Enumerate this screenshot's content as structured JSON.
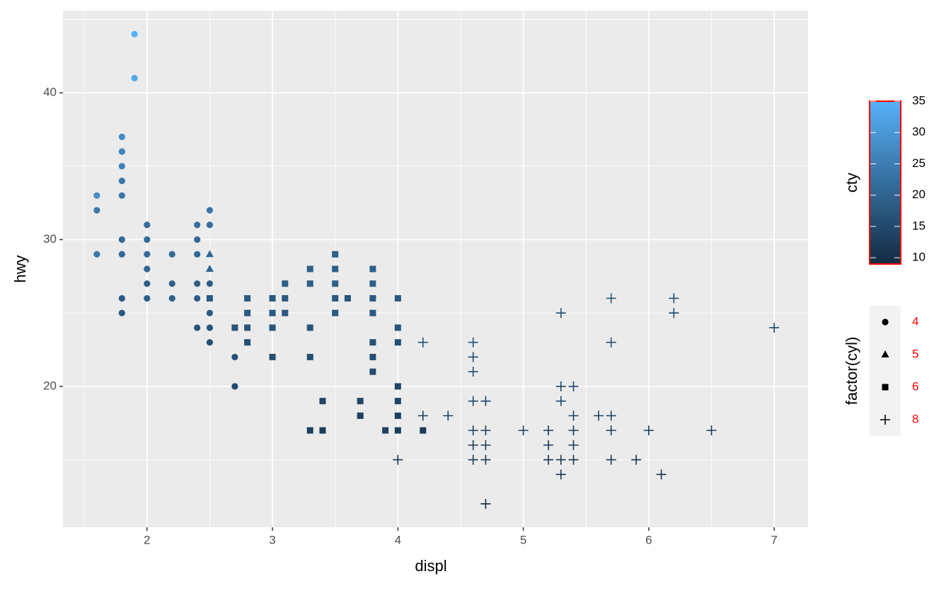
{
  "chart_data": {
    "type": "scatter",
    "x_label": "displ",
    "y_label": "hwy",
    "xlim": [
      1.33,
      7.27
    ],
    "ylim": [
      10.4,
      45.6
    ],
    "xticks": [
      2,
      3,
      4,
      5,
      6,
      7
    ],
    "yticks": [
      20,
      30,
      40
    ],
    "xminor": [
      1.5,
      2.5,
      3.5,
      4.5,
      5.5,
      6.5
    ],
    "yminor": [
      15,
      25,
      35,
      45
    ],
    "grid": true,
    "colorbar": {
      "title": "cty",
      "low": "#132B43",
      "high": "#56B1F7",
      "lim": [
        9,
        35
      ],
      "ticks": [
        10,
        15,
        20,
        25,
        30,
        35
      ],
      "border": "#ff0000"
    },
    "shape_legend": {
      "title": "factor(cyl)",
      "label_color": "#ff0000"
    },
    "series": [
      {
        "name": "4",
        "shape": "circle",
        "x": [
          1.6,
          1.6,
          1.6,
          1.8,
          1.8,
          1.8,
          1.8,
          1.8,
          1.8,
          1.8,
          1.8,
          1.8,
          1.9,
          1.9,
          2,
          2,
          2,
          2,
          2,
          2,
          2.2,
          2.2,
          2.2,
          2.4,
          2.4,
          2.4,
          2.4,
          2.4,
          2.4,
          2.5,
          2.5,
          2.5,
          2.5,
          2.5,
          2.5,
          2.7,
          2.7
        ],
        "values": [
          33,
          32,
          29,
          29,
          26,
          25,
          30,
          33,
          34,
          35,
          36,
          37,
          44,
          41,
          31,
          30,
          29,
          28,
          27,
          26,
          29,
          27,
          26,
          31,
          30,
          29,
          27,
          26,
          24,
          32,
          31,
          27,
          25,
          24,
          23,
          22,
          20
        ],
        "cty": [
          28,
          24,
          24,
          21,
          18,
          18,
          21,
          24,
          24,
          26,
          26,
          28,
          35,
          33,
          22,
          21,
          21,
          20,
          19,
          19,
          21,
          19,
          19,
          22,
          21,
          21,
          19,
          19,
          17,
          23,
          22,
          19,
          18,
          17,
          16,
          16,
          15
        ]
      },
      {
        "name": "5",
        "shape": "triangle",
        "x": [
          2.5,
          2.5
        ],
        "values": [
          29,
          28
        ],
        "cty": [
          21,
          20
        ]
      },
      {
        "name": "6",
        "shape": "square",
        "x": [
          2.5,
          2.7,
          2.8,
          2.8,
          2.8,
          2.8,
          3,
          3,
          3,
          3,
          3.1,
          3.1,
          3.1,
          3.3,
          3.3,
          3.3,
          3.3,
          3.3,
          3.4,
          3.4,
          3.5,
          3.5,
          3.5,
          3.5,
          3.5,
          3.6,
          3.7,
          3.7,
          3.8,
          3.8,
          3.8,
          3.8,
          3.8,
          3.8,
          3.8,
          3.9,
          4,
          4,
          4,
          4,
          4,
          4,
          4,
          4.2
        ],
        "values": [
          26,
          24,
          26,
          25,
          24,
          23,
          26,
          25,
          24,
          22,
          27,
          26,
          25,
          28,
          27,
          24,
          22,
          17,
          19,
          17,
          29,
          28,
          27,
          26,
          25,
          26,
          19,
          18,
          28,
          27,
          26,
          25,
          23,
          22,
          21,
          17,
          26,
          24,
          23,
          20,
          19,
          18,
          17,
          17
        ],
        "cty": [
          18,
          17,
          18,
          18,
          17,
          16,
          18,
          18,
          17,
          16,
          19,
          18,
          18,
          19,
          19,
          17,
          16,
          13,
          14,
          12,
          19,
          19,
          19,
          18,
          18,
          17,
          14,
          13,
          19,
          19,
          18,
          18,
          16,
          16,
          15,
          13,
          18,
          17,
          16,
          14,
          14,
          13,
          13,
          12
        ]
      },
      {
        "name": "8",
        "shape": "plus",
        "x": [
          4,
          4.2,
          4.2,
          4.4,
          4.6,
          4.6,
          4.6,
          4.6,
          4.6,
          4.6,
          4.6,
          4.7,
          4.7,
          4.7,
          4.7,
          4.7,
          5,
          5.2,
          5.2,
          5.2,
          5.3,
          5.3,
          5.3,
          5.3,
          5.3,
          5.4,
          5.4,
          5.4,
          5.4,
          5.4,
          5.6,
          5.7,
          5.7,
          5.7,
          5.7,
          5.7,
          5.9,
          6,
          6.1,
          6.2,
          6.2,
          6.5,
          7
        ],
        "values": [
          15,
          23,
          18,
          18,
          23,
          22,
          21,
          19,
          17,
          16,
          15,
          19,
          17,
          16,
          15,
          12,
          17,
          17,
          16,
          15,
          25,
          20,
          19,
          15,
          14,
          20,
          18,
          17,
          16,
          15,
          18,
          26,
          23,
          18,
          17,
          15,
          15,
          17,
          14,
          26,
          25,
          17,
          24
        ],
        "cty": [
          11,
          16,
          13,
          13,
          16,
          15,
          15,
          14,
          13,
          12,
          11,
          14,
          13,
          12,
          11,
          9,
          13,
          12,
          12,
          11,
          16,
          14,
          14,
          11,
          11,
          14,
          13,
          12,
          12,
          11,
          13,
          17,
          16,
          13,
          12,
          11,
          11,
          12,
          11,
          16,
          15,
          12,
          15
        ]
      }
    ]
  }
}
